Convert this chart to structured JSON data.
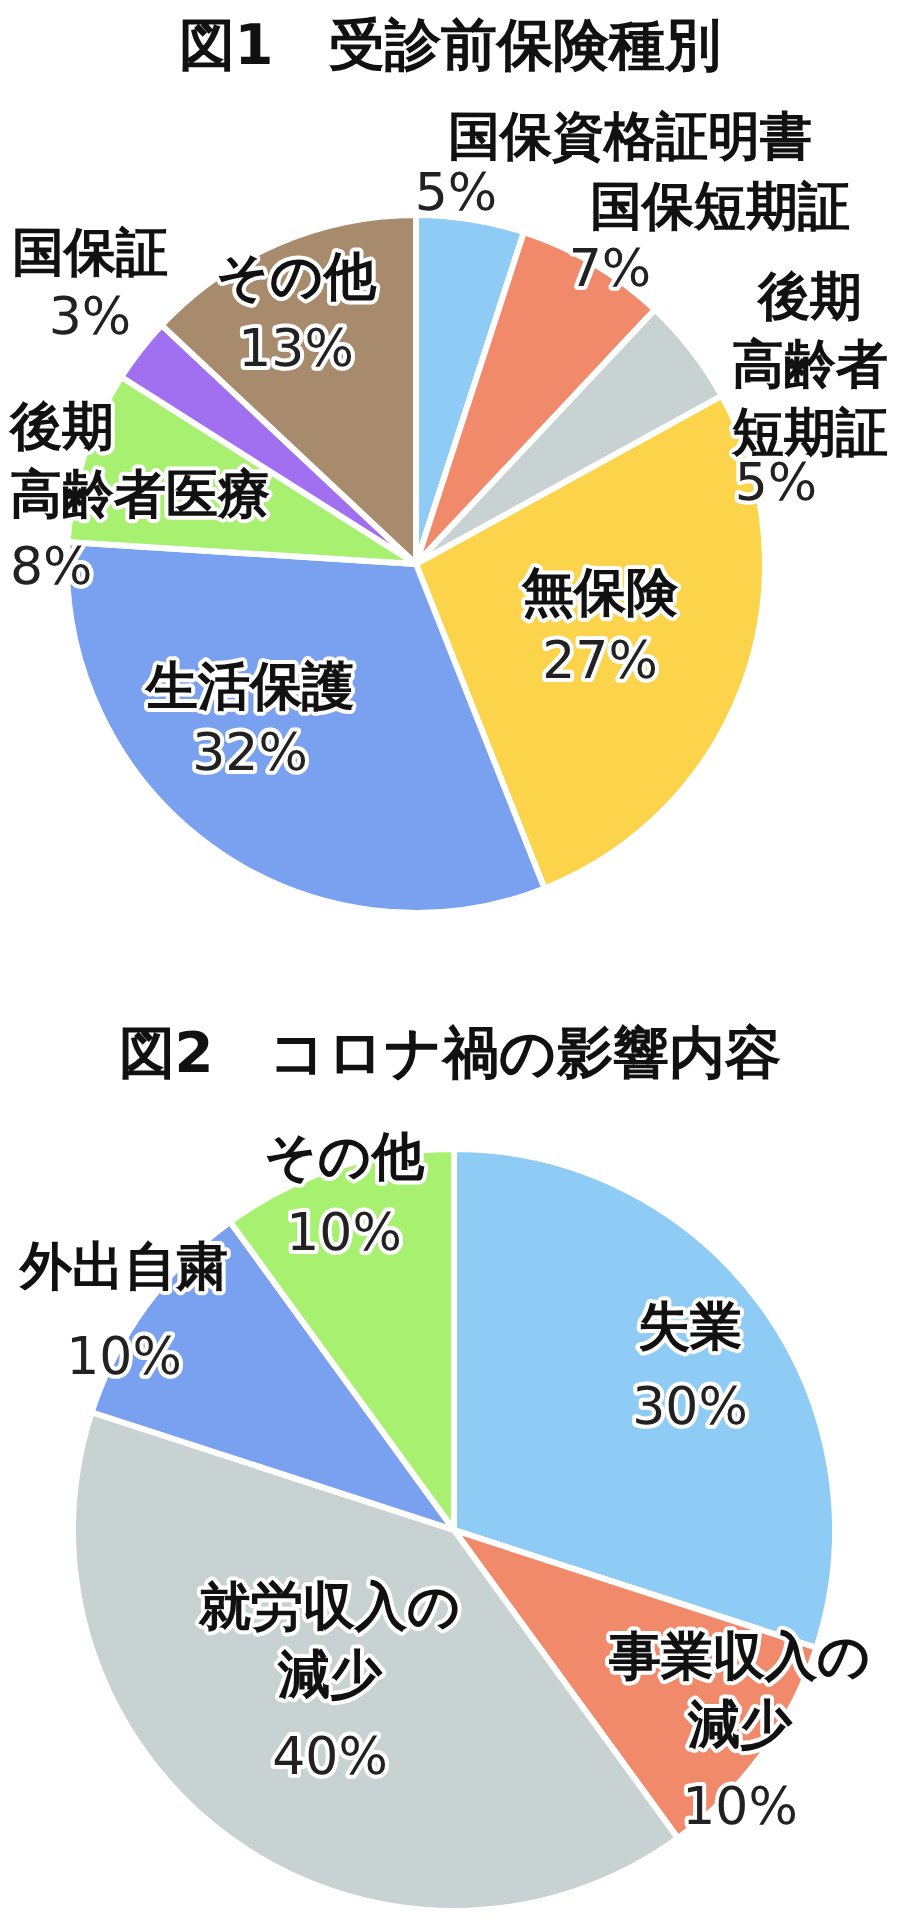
{
  "chart_data": [
    {
      "type": "pie",
      "title": "図1　受診前保険種別",
      "categories": [
        "国保資格証明書",
        "国保短期証",
        "後期高齢者短期証",
        "無保険",
        "生活保護",
        "後期高齢者医療",
        "国保証",
        "その他"
      ],
      "values": [
        5,
        7,
        5,
        27,
        32,
        8,
        3,
        13
      ],
      "colors": [
        "#8ecbf5",
        "#f08a6a",
        "#c8d2d2",
        "#fcd44c",
        "#7aa0f0",
        "#a8f070",
        "#a070f0",
        "#a88a6c"
      ],
      "value_labels": [
        "5%",
        "7%",
        "5%",
        "27%",
        "32%",
        "8%",
        "3%",
        "13%"
      ],
      "legend": false
    },
    {
      "type": "pie",
      "title": "図2　コロナ禍の影響内容",
      "categories": [
        "失業",
        "事業収入の減少",
        "就労収入の減少",
        "外出自粛",
        "その他"
      ],
      "values": [
        30,
        10,
        40,
        10,
        10
      ],
      "colors": [
        "#8ecbf5",
        "#f08a6a",
        "#c8d2d2",
        "#7aa0f0",
        "#a8f070"
      ],
      "value_labels": [
        "30%",
        "10%",
        "40%",
        "10%",
        "10%"
      ],
      "legend": false
    }
  ]
}
